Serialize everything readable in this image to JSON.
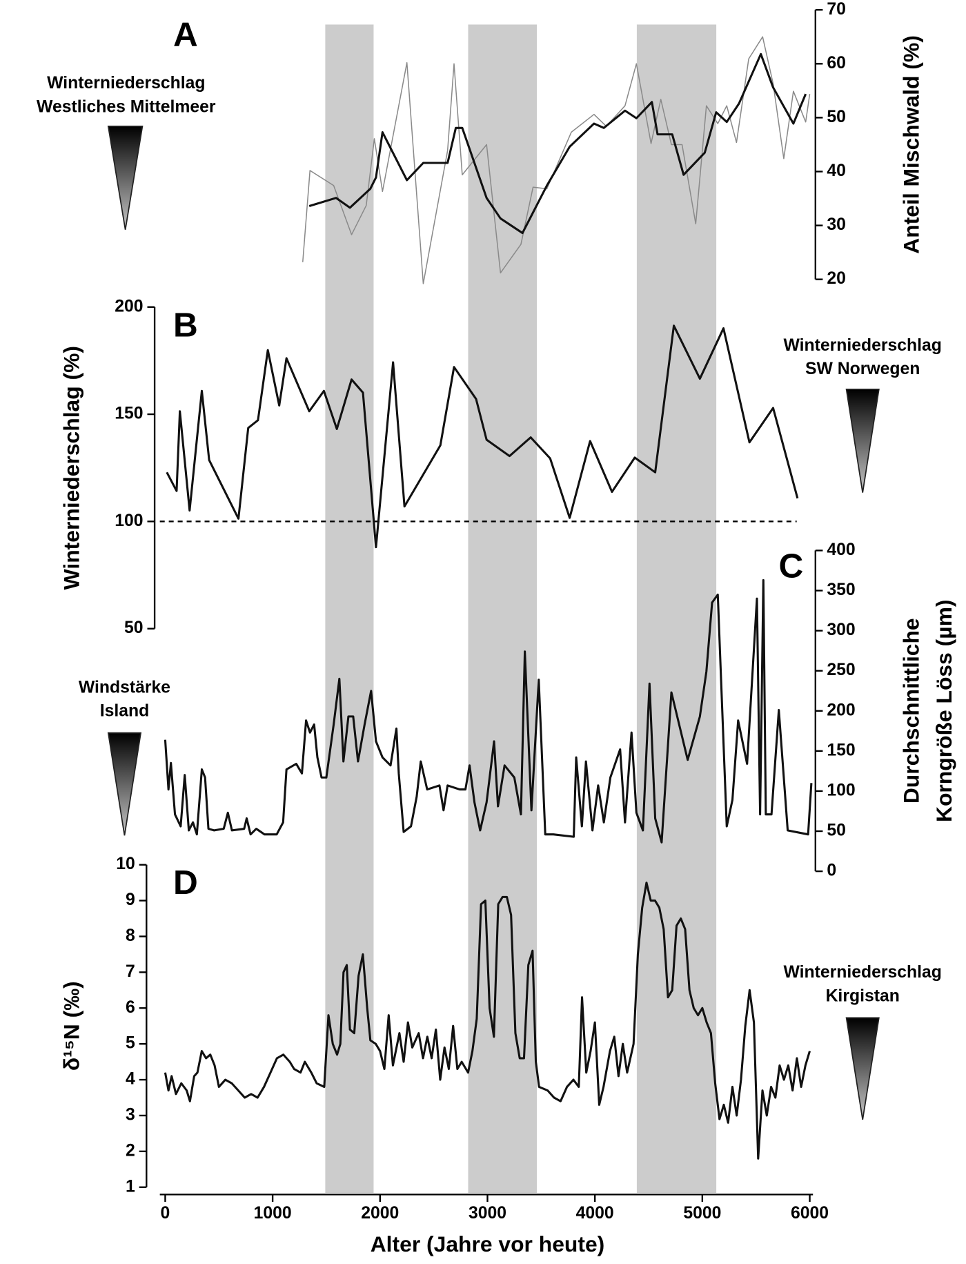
{
  "chart_data": [
    {
      "type": "line",
      "label": "A",
      "ylabel": "Anteil Mischwald (%)",
      "y_axis_side": "right",
      "annotation": [
        "Winterniederschlag",
        "Westliches Mittelmeer"
      ],
      "ylim": [
        20,
        70
      ],
      "yticks": [
        20,
        30,
        40,
        50,
        60,
        70
      ],
      "series": [
        {
          "color": "#8a8a8a",
          "width": "thin",
          "x": [
            1280,
            1348,
            1568,
            1735,
            1871,
            1947,
            2023,
            2250,
            2402,
            2629,
            2689,
            2765,
            2992,
            3121,
            3311,
            3424,
            3553,
            3780,
            3992,
            4106,
            4280,
            4386,
            4523,
            4614,
            4712,
            4811,
            4939,
            5038,
            5144,
            5227,
            5318,
            5432,
            5561,
            5659,
            5758,
            5848,
            5962,
            6000
          ],
          "values": [
            23.2,
            40.2,
            37.4,
            28.3,
            33.7,
            46.1,
            36.3,
            60.2,
            19.2,
            43.9,
            60.0,
            39.4,
            45.0,
            21.2,
            26.5,
            37.1,
            36.8,
            47.3,
            50.6,
            48.4,
            52.2,
            60.0,
            45.2,
            53.4,
            45.0,
            45.0,
            30.3,
            52.2,
            48.9,
            52.2,
            45.4,
            60.9,
            65.0,
            56.3,
            42.4,
            54.9,
            49.2,
            54.4
          ]
        },
        {
          "color": "#111111",
          "width": "thick",
          "x": [
            1341,
            1591,
            1720,
            1909,
            1962,
            2023,
            2250,
            2402,
            2629,
            2705,
            2765,
            2992,
            3121,
            3326,
            3553,
            3765,
            3992,
            4083,
            4280,
            4386,
            4530,
            4583,
            4720,
            4826,
            5023,
            5129,
            5227,
            5341,
            5545,
            5659,
            5848,
            5962
          ],
          "values": [
            33.6,
            35.1,
            33.3,
            36.8,
            38.9,
            47.3,
            38.4,
            41.6,
            41.6,
            48.1,
            48.1,
            35.1,
            31.3,
            28.6,
            37.4,
            44.6,
            48.9,
            48.1,
            51.3,
            49.9,
            52.9,
            46.9,
            46.9,
            39.4,
            43.5,
            51.0,
            49.2,
            52.6,
            61.8,
            55.6,
            48.9,
            54.4
          ]
        }
      ]
    },
    {
      "type": "line",
      "label": "B",
      "ylabel": "Winterniederschlag (%)",
      "y_axis_side": "left",
      "annotation": [
        "Winterniederschlag",
        "SW Norwegen"
      ],
      "ylim": [
        50,
        200
      ],
      "yticks": [
        50,
        100,
        150,
        200
      ],
      "reference_line": 100,
      "series": [
        {
          "color": "#111111",
          "width": "thick",
          "x": [
            15,
            106,
            136,
            227,
            341,
            409,
            682,
            773,
            864,
            955,
            1061,
            1129,
            1341,
            1477,
            1598,
            1735,
            1841,
            1962,
            2121,
            2227,
            2561,
            2689,
            2894,
            2992,
            3205,
            3402,
            3583,
            3765,
            3955,
            4159,
            4371,
            4561,
            4735,
            4977,
            5197,
            5439,
            5659,
            5886
          ],
          "values": [
            122.9,
            114.2,
            151.4,
            105.1,
            160.9,
            128.6,
            101.3,
            143.6,
            147.2,
            179.9,
            154.1,
            176.1,
            151.4,
            160.9,
            143.1,
            166.2,
            160.1,
            88.0,
            174.2,
            107.0,
            135.5,
            172.0,
            157.1,
            138.1,
            130.5,
            139.2,
            129.4,
            101.7,
            137.5,
            113.8,
            129.8,
            122.9,
            191.3,
            166.6,
            190.1,
            136.9,
            152.9,
            110.8
          ]
        }
      ]
    },
    {
      "type": "line",
      "label": "C",
      "ylabel": [
        "Durchschnittliche",
        "Korngröße Löss (µm)"
      ],
      "y_axis_side": "right",
      "annotation": [
        "Windstärke",
        "Island"
      ],
      "ylim": [
        0,
        400
      ],
      "yticks": [
        0,
        50,
        100,
        150,
        200,
        250,
        300,
        350,
        400
      ],
      "series": [
        {
          "color": "#111111",
          "width": "thick",
          "x": [
            0,
            30,
            53,
            91,
            144,
            182,
            220,
            258,
            295,
            341,
            371,
            402,
            455,
            545,
            583,
            621,
            735,
            758,
            795,
            848,
            924,
            1038,
            1098,
            1129,
            1220,
            1273,
            1311,
            1348,
            1386,
            1417,
            1455,
            1500,
            1568,
            1621,
            1659,
            1705,
            1750,
            1795,
            1856,
            1917,
            1962,
            2023,
            2098,
            2152,
            2174,
            2220,
            2288,
            2341,
            2379,
            2439,
            2553,
            2591,
            2629,
            2742,
            2795,
            2833,
            2879,
            2932,
            2992,
            3061,
            3098,
            3159,
            3250,
            3311,
            3348,
            3409,
            3477,
            3538,
            3614,
            3803,
            3826,
            3879,
            3917,
            3977,
            4030,
            4083,
            4144,
            4235,
            4280,
            4341,
            4386,
            4447,
            4508,
            4561,
            4621,
            4712,
            4864,
            4977,
            5038,
            5091,
            5144,
            5227,
            5280,
            5333,
            5417,
            5508,
            5538,
            5568,
            5591,
            5644,
            5712,
            5795,
            5985,
            6015
          ],
          "values": [
            164,
            102,
            135,
            71,
            56,
            120,
            51,
            61,
            46,
            127,
            117,
            53,
            51,
            53,
            73,
            51,
            53,
            66,
            46,
            53,
            46,
            46,
            61,
            127,
            134,
            122,
            188,
            173,
            183,
            142,
            117,
            117,
            183,
            240,
            137,
            193,
            193,
            137,
            183,
            225,
            162,
            142,
            132,
            178,
            122,
            49,
            56,
            93,
            137,
            102,
            107,
            76,
            107,
            102,
            102,
            132,
            86,
            51,
            86,
            162,
            81,
            132,
            117,
            71,
            274,
            76,
            239,
            46,
            46,
            43,
            142,
            56,
            137,
            51,
            107,
            61,
            117,
            152,
            61,
            173,
            73,
            51,
            234,
            66,
            36,
            223,
            139,
            193,
            249,
            335,
            345,
            56,
            89,
            188,
            134,
            340,
            71,
            363,
            71,
            71,
            201,
            51,
            46,
            110
          ]
        }
      ]
    },
    {
      "type": "line",
      "label": "D",
      "ylabel": "δ¹⁵N (‰)",
      "y_axis_side": "left",
      "annotation": [
        "Winterniederschlag",
        "Kirgistan"
      ],
      "ylim": [
        1,
        10
      ],
      "yticks": [
        1,
        2,
        3,
        4,
        5,
        6,
        7,
        8,
        9,
        10
      ],
      "xlabel": "Alter (Jahre vor heute)",
      "xlim": [
        -50,
        6030
      ],
      "xticks": [
        0,
        1000,
        2000,
        3000,
        4000,
        5000,
        6000
      ],
      "shaded_ranges": [
        [
          1490,
          1940
        ],
        [
          2820,
          3460
        ],
        [
          4390,
          5130
        ]
      ],
      "shade_color": "#cccccc",
      "series": [
        {
          "color": "#111111",
          "width": "thick",
          "x": [
            0,
            30,
            60,
            100,
            150,
            200,
            230,
            270,
            300,
            340,
            380,
            420,
            460,
            500,
            560,
            620,
            680,
            740,
            800,
            860,
            920,
            980,
            1040,
            1100,
            1160,
            1200,
            1260,
            1300,
            1360,
            1410,
            1480,
            1520,
            1560,
            1600,
            1630,
            1660,
            1690,
            1720,
            1760,
            1800,
            1840,
            1880,
            1910,
            1960,
            2000,
            2040,
            2080,
            2120,
            2180,
            2220,
            2260,
            2300,
            2360,
            2400,
            2440,
            2480,
            2520,
            2560,
            2600,
            2640,
            2680,
            2720,
            2760,
            2820,
            2860,
            2900,
            2940,
            2980,
            3020,
            3060,
            3100,
            3140,
            3180,
            3220,
            3260,
            3300,
            3340,
            3380,
            3420,
            3450,
            3480,
            3560,
            3620,
            3680,
            3740,
            3800,
            3850,
            3880,
            3920,
            3960,
            4000,
            4040,
            4080,
            4140,
            4180,
            4220,
            4260,
            4300,
            4360,
            4400,
            4440,
            4480,
            4520,
            4560,
            4600,
            4640,
            4680,
            4720,
            4760,
            4800,
            4840,
            4880,
            4920,
            4960,
            5000,
            5040,
            5080,
            5120,
            5160,
            5200,
            5240,
            5280,
            5320,
            5360,
            5400,
            5440,
            5480,
            5520,
            5560,
            5600,
            5640,
            5680,
            5720,
            5760,
            5800,
            5840,
            5880,
            5920,
            5960,
            6000
          ],
          "values": [
            4.2,
            3.7,
            4.1,
            3.6,
            3.9,
            3.7,
            3.4,
            4.1,
            4.2,
            4.8,
            4.6,
            4.7,
            4.4,
            3.8,
            4.0,
            3.9,
            3.7,
            3.5,
            3.6,
            3.5,
            3.8,
            4.2,
            4.6,
            4.7,
            4.5,
            4.3,
            4.2,
            4.5,
            4.2,
            3.9,
            3.8,
            5.8,
            5.0,
            4.7,
            5.0,
            7.0,
            7.2,
            5.4,
            5.3,
            6.9,
            7.5,
            6.0,
            5.1,
            5.0,
            4.8,
            4.3,
            5.8,
            4.4,
            5.3,
            4.5,
            5.6,
            4.9,
            5.3,
            4.6,
            5.2,
            4.6,
            5.4,
            4.0,
            4.9,
            4.3,
            5.5,
            4.3,
            4.5,
            4.2,
            4.8,
            5.7,
            8.9,
            9.0,
            6.0,
            5.2,
            8.9,
            9.1,
            9.1,
            8.6,
            5.3,
            4.6,
            4.6,
            7.2,
            7.6,
            4.5,
            3.8,
            3.7,
            3.5,
            3.4,
            3.8,
            4.0,
            3.8,
            6.3,
            4.2,
            4.8,
            5.6,
            3.3,
            3.8,
            4.8,
            5.2,
            4.1,
            5.0,
            4.2,
            5.0,
            7.5,
            8.8,
            9.5,
            9.0,
            9.0,
            8.8,
            8.2,
            6.3,
            6.5,
            8.3,
            8.5,
            8.2,
            6.5,
            6.0,
            5.8,
            6.0,
            5.6,
            5.3,
            3.9,
            2.9,
            3.3,
            2.8,
            3.8,
            3.0,
            4.0,
            5.5,
            6.5,
            5.6,
            1.8,
            3.7,
            3.0,
            3.8,
            3.5,
            4.4,
            4.0,
            4.4,
            3.7,
            4.6,
            3.8,
            4.4,
            4.8
          ]
        }
      ]
    }
  ]
}
